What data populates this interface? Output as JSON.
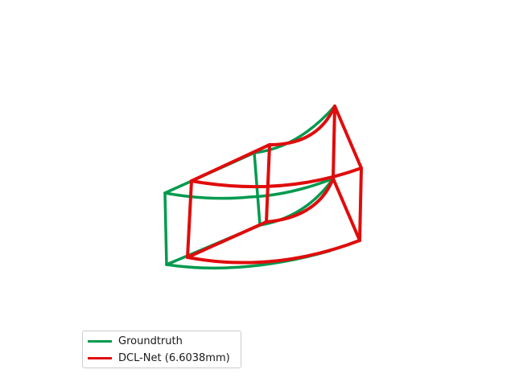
{
  "colors": {
    "groundtruth": "#009a4e",
    "prediction": "#e00c0c"
  },
  "legend": {
    "items": [
      {
        "label": "Groundtruth",
        "color": "#009a4e"
      },
      {
        "label": "DCL-Net (6.6038mm)",
        "color": "#e00c0c"
      }
    ]
  }
}
